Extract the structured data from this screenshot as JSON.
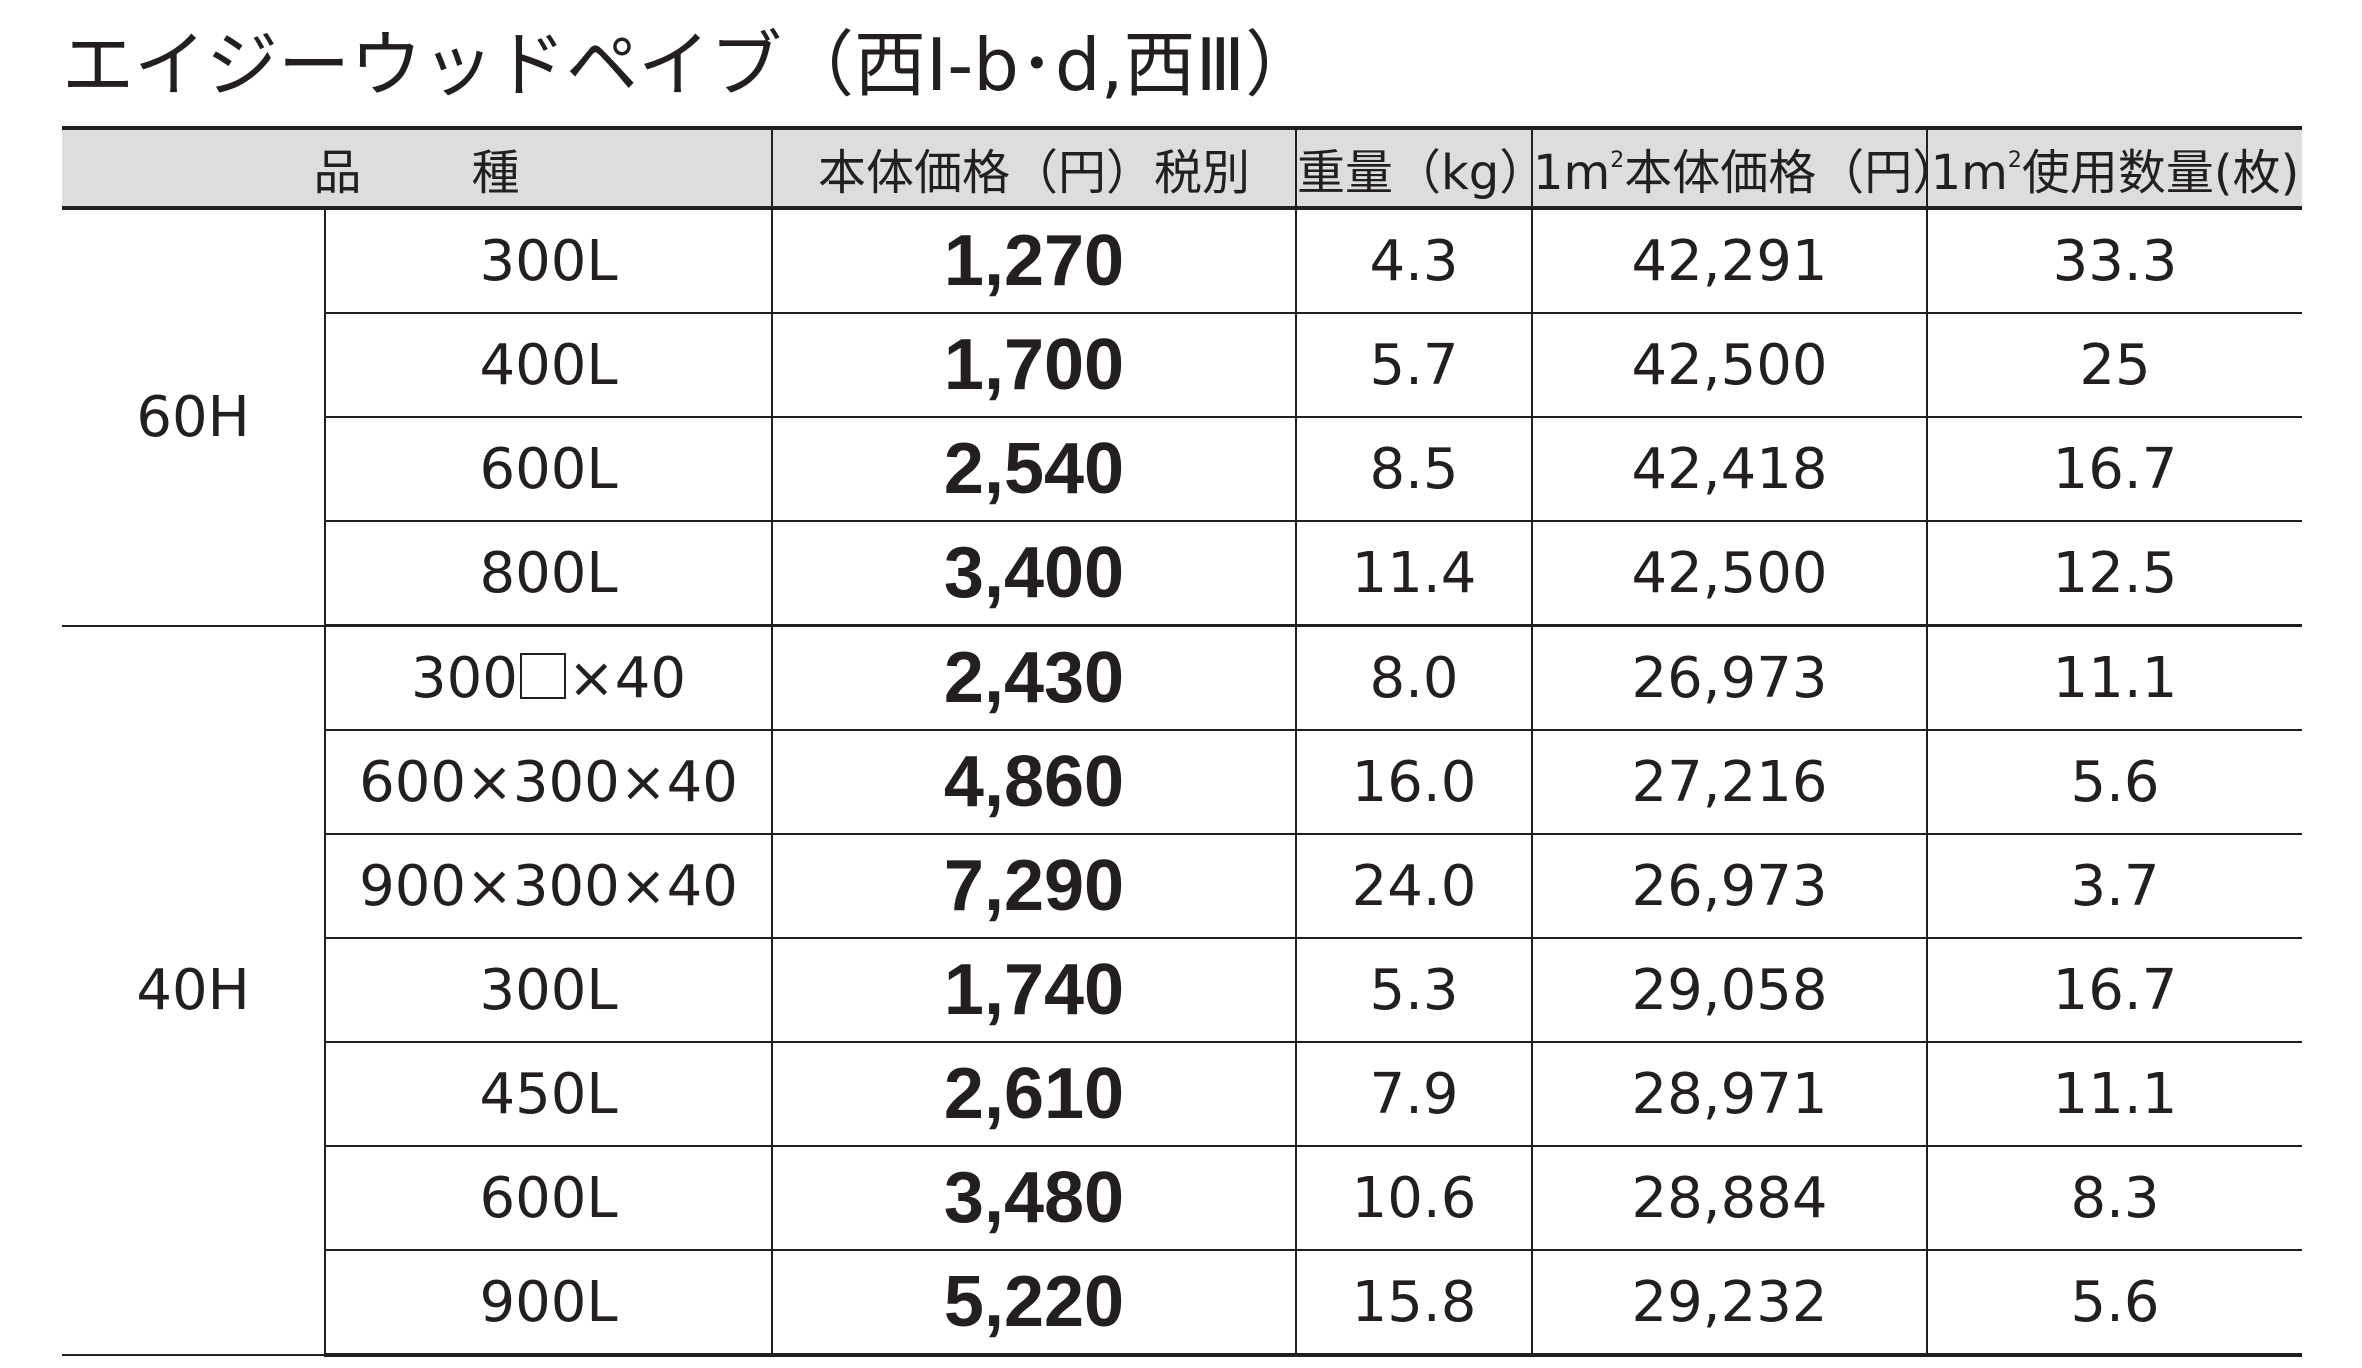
{
  "title": "エイジーウッドペイブ（西Ⅰ-b･d,西Ⅲ）",
  "headers": {
    "kind_a": "品",
    "kind_b": "種",
    "price": "本体価格（円）税別",
    "weight": "重量（kg）",
    "m2_price_prefix": "1m",
    "m2_price_sup": "2",
    "m2_price_rest": "本体価格（円）",
    "m2_qty_prefix": "1m",
    "m2_qty_sup": "2",
    "m2_qty_rest": "使用数量(枚)"
  },
  "groups": [
    {
      "label": "60H",
      "rows": [
        {
          "kind": "300L",
          "price": "1,270",
          "weight": "4.3",
          "m2_price": "42,291",
          "m2_qty": "33.3"
        },
        {
          "kind": "400L",
          "price": "1,700",
          "weight": "5.7",
          "m2_price": "42,500",
          "m2_qty": "25"
        },
        {
          "kind": "600L",
          "price": "2,540",
          "weight": "8.5",
          "m2_price": "42,418",
          "m2_qty": "16.7"
        },
        {
          "kind": "800L",
          "price": "3,400",
          "weight": "11.4",
          "m2_price": "42,500",
          "m2_qty": "12.5"
        }
      ]
    },
    {
      "label": "40H",
      "rows": [
        {
          "kind_a": "300",
          "kind_b": "×40",
          "price": "2,430",
          "weight": "8.0",
          "m2_price": "26,973",
          "m2_qty": "11.1"
        },
        {
          "kind": "600×300×40",
          "price": "4,860",
          "weight": "16.0",
          "m2_price": "27,216",
          "m2_qty": "5.6"
        },
        {
          "kind": "900×300×40",
          "price": "7,290",
          "weight": "24.0",
          "m2_price": "26,973",
          "m2_qty": "3.7"
        },
        {
          "kind": "300L",
          "price": "1,740",
          "weight": "5.3",
          "m2_price": "29,058",
          "m2_qty": "16.7"
        },
        {
          "kind": "450L",
          "price": "2,610",
          "weight": "7.9",
          "m2_price": "28,971",
          "m2_qty": "11.1"
        },
        {
          "kind": "600L",
          "price": "3,480",
          "weight": "10.6",
          "m2_price": "28,884",
          "m2_qty": "8.3"
        },
        {
          "kind": "900L",
          "price": "5,220",
          "weight": "15.8",
          "m2_price": "29,232",
          "m2_qty": "5.6"
        }
      ]
    }
  ]
}
